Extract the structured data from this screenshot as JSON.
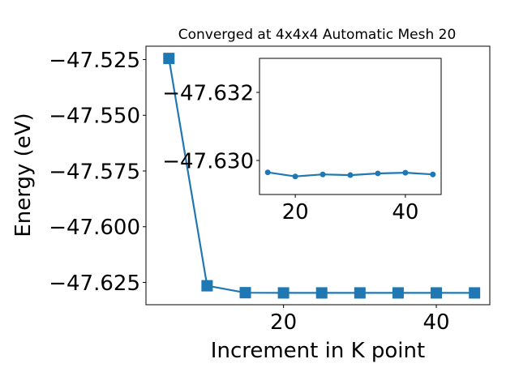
{
  "chart_data": [
    {
      "type": "line",
      "title": "Converged at 4x4x4 Automatic Mesh 20",
      "xlabel": "Increment in K point",
      "ylabel": "Energy (eV)",
      "xlim": [
        2.0,
        47.0
      ],
      "ylim": [
        -47.635,
        -47.519
      ],
      "xticks": [
        20,
        40
      ],
      "xtick_labels": [
        "20",
        "40"
      ],
      "yticks": [
        -47.625,
        -47.6,
        -47.575,
        -47.55,
        -47.525
      ],
      "ytick_labels": [
        "−47.625",
        "−47.600",
        "−47.575",
        "−47.550",
        "−47.525"
      ],
      "grid": false,
      "marker": "square",
      "color": "#1f77b4",
      "series": [
        {
          "x": [
            5,
            10,
            15,
            20,
            25,
            30,
            35,
            40,
            45
          ],
          "y": [
            -47.5245,
            -47.6265,
            -47.6296,
            -47.6297,
            -47.6297,
            -47.6297,
            -47.6297,
            -47.6297,
            -47.6297
          ]
        }
      ]
    },
    {
      "type": "line",
      "inset": true,
      "xlim": [
        13.5,
        46.5
      ],
      "ylim": [
        -47.629,
        -47.633
      ],
      "xticks": [
        20,
        40
      ],
      "xtick_labels": [
        "20",
        "40"
      ],
      "yticks": [
        -47.63,
        -47.632
      ],
      "ytick_labels": [
        "−47.630",
        "−47.632"
      ],
      "grid": false,
      "marker": "circle",
      "color": "#1f77b4",
      "series": [
        {
          "x": [
            15,
            20,
            25,
            30,
            35,
            40,
            45
          ],
          "y": [
            -47.62965,
            -47.62953,
            -47.62959,
            -47.62957,
            -47.62962,
            -47.62964,
            -47.62959
          ]
        }
      ]
    }
  ]
}
